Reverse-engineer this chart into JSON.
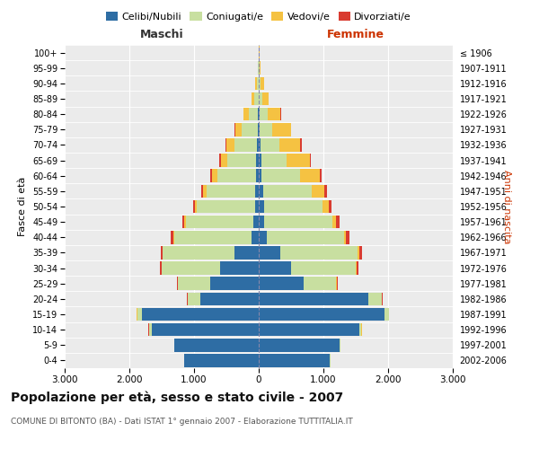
{
  "age_groups_bottom_to_top": [
    "0-4",
    "5-9",
    "10-14",
    "15-19",
    "20-24",
    "25-29",
    "30-34",
    "35-39",
    "40-44",
    "45-49",
    "50-54",
    "55-59",
    "60-64",
    "65-69",
    "70-74",
    "75-79",
    "80-84",
    "85-89",
    "90-94",
    "95-99",
    "100+"
  ],
  "birth_years_bottom_to_top": [
    "2002-2006",
    "1997-2001",
    "1992-1996",
    "1987-1991",
    "1982-1986",
    "1977-1981",
    "1972-1976",
    "1967-1971",
    "1962-1966",
    "1957-1961",
    "1952-1956",
    "1947-1951",
    "1942-1946",
    "1937-1941",
    "1932-1936",
    "1927-1931",
    "1922-1926",
    "1917-1921",
    "1912-1916",
    "1907-1911",
    "≤ 1906"
  ],
  "male": {
    "celibi": [
      1150,
      1300,
      1650,
      1800,
      900,
      750,
      600,
      380,
      110,
      80,
      60,
      55,
      45,
      35,
      25,
      15,
      8,
      4,
      0,
      0,
      0
    ],
    "coniugati": [
      5,
      10,
      50,
      80,
      200,
      500,
      900,
      1100,
      1200,
      1050,
      900,
      750,
      600,
      450,
      350,
      250,
      150,
      60,
      30,
      10,
      2
    ],
    "vedovi": [
      0,
      0,
      1,
      2,
      3,
      5,
      5,
      10,
      15,
      20,
      30,
      50,
      80,
      100,
      120,
      100,
      80,
      50,
      25,
      10,
      2
    ],
    "divorziati": [
      0,
      0,
      1,
      2,
      5,
      10,
      20,
      30,
      40,
      35,
      30,
      30,
      25,
      20,
      15,
      10,
      5,
      2,
      0,
      0,
      0
    ]
  },
  "female": {
    "nubili": [
      1100,
      1250,
      1550,
      1950,
      1700,
      700,
      500,
      330,
      120,
      90,
      80,
      65,
      45,
      35,
      25,
      15,
      8,
      4,
      0,
      0,
      0
    ],
    "coniugate": [
      5,
      10,
      40,
      60,
      200,
      500,
      1000,
      1200,
      1200,
      1050,
      900,
      750,
      600,
      400,
      300,
      200,
      130,
      50,
      30,
      10,
      2
    ],
    "vedove": [
      0,
      1,
      2,
      3,
      5,
      10,
      10,
      20,
      30,
      60,
      100,
      200,
      300,
      350,
      320,
      280,
      200,
      100,
      50,
      20,
      5
    ],
    "divorziate": [
      0,
      0,
      1,
      2,
      5,
      15,
      30,
      45,
      55,
      50,
      45,
      40,
      30,
      20,
      15,
      10,
      5,
      2,
      0,
      0,
      0
    ]
  },
  "colors": {
    "celibi_nubili": "#2e6da4",
    "coniugati": "#c8dfa0",
    "vedovi": "#f5c242",
    "divorziati": "#d93b30"
  },
  "xlim": 3000,
  "title": "Popolazione per età, sesso e stato civile - 2007",
  "subtitle": "COMUNE DI BITONTO (BA) - Dati ISTAT 1° gennaio 2007 - Elaborazione TUTTITALIA.IT",
  "ylabel_left": "Fasce di età",
  "ylabel_right": "Anni di nascita",
  "xlabel_left": "Maschi",
  "xlabel_right": "Femmine",
  "background_color": "#ffffff",
  "plot_bg_color": "#ebebeb"
}
